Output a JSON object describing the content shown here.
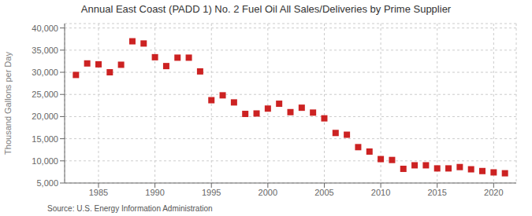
{
  "chart_data": {
    "type": "scatter",
    "title": "Annual East Coast (PADD 1) No. 2 Fuel Oil All Sales/Deliveries by Prime Supplier",
    "ylabel": "Thousand Gallons per Day",
    "annotations": [
      "Source: U.S. Energy Information Administration"
    ],
    "x": [
      1983,
      1984,
      1985,
      1986,
      1987,
      1988,
      1989,
      1990,
      1991,
      1992,
      1993,
      1994,
      1995,
      1996,
      1997,
      1998,
      1999,
      2000,
      2001,
      2002,
      2003,
      2004,
      2005,
      2006,
      2007,
      2008,
      2009,
      2010,
      2011,
      2012,
      2013,
      2014,
      2015,
      2016,
      2017,
      2018,
      2019,
      2020,
      2021
    ],
    "values": [
      29400,
      32000,
      31800,
      30000,
      31700,
      37000,
      36500,
      33400,
      31400,
      33300,
      33300,
      30200,
      23700,
      24800,
      23200,
      20600,
      20700,
      21800,
      22900,
      21000,
      22000,
      20900,
      19600,
      16300,
      15900,
      13100,
      12100,
      10400,
      10200,
      8200,
      9000,
      9000,
      8300,
      8300,
      8600,
      8100,
      7700,
      7400,
      7200
    ],
    "color": "#cc2222",
    "marker": "square",
    "xlim": [
      1982,
      2022
    ],
    "xticks": [
      1985,
      1990,
      1995,
      2000,
      2005,
      2010,
      2015,
      2020
    ],
    "ylim": [
      5000,
      41000
    ],
    "yticks": [
      {
        "value": 5000,
        "label": "5,000"
      },
      {
        "value": 10000,
        "label": "10,000"
      },
      {
        "value": 15000,
        "label": "15,000"
      },
      {
        "value": 20000,
        "label": "20,000"
      },
      {
        "value": 25000,
        "label": "25,000"
      },
      {
        "value": 30000,
        "label": "30,000"
      },
      {
        "value": 35000,
        "label": "35,000"
      },
      {
        "value": 40000,
        "label": "40,000"
      }
    ],
    "grid": true
  }
}
